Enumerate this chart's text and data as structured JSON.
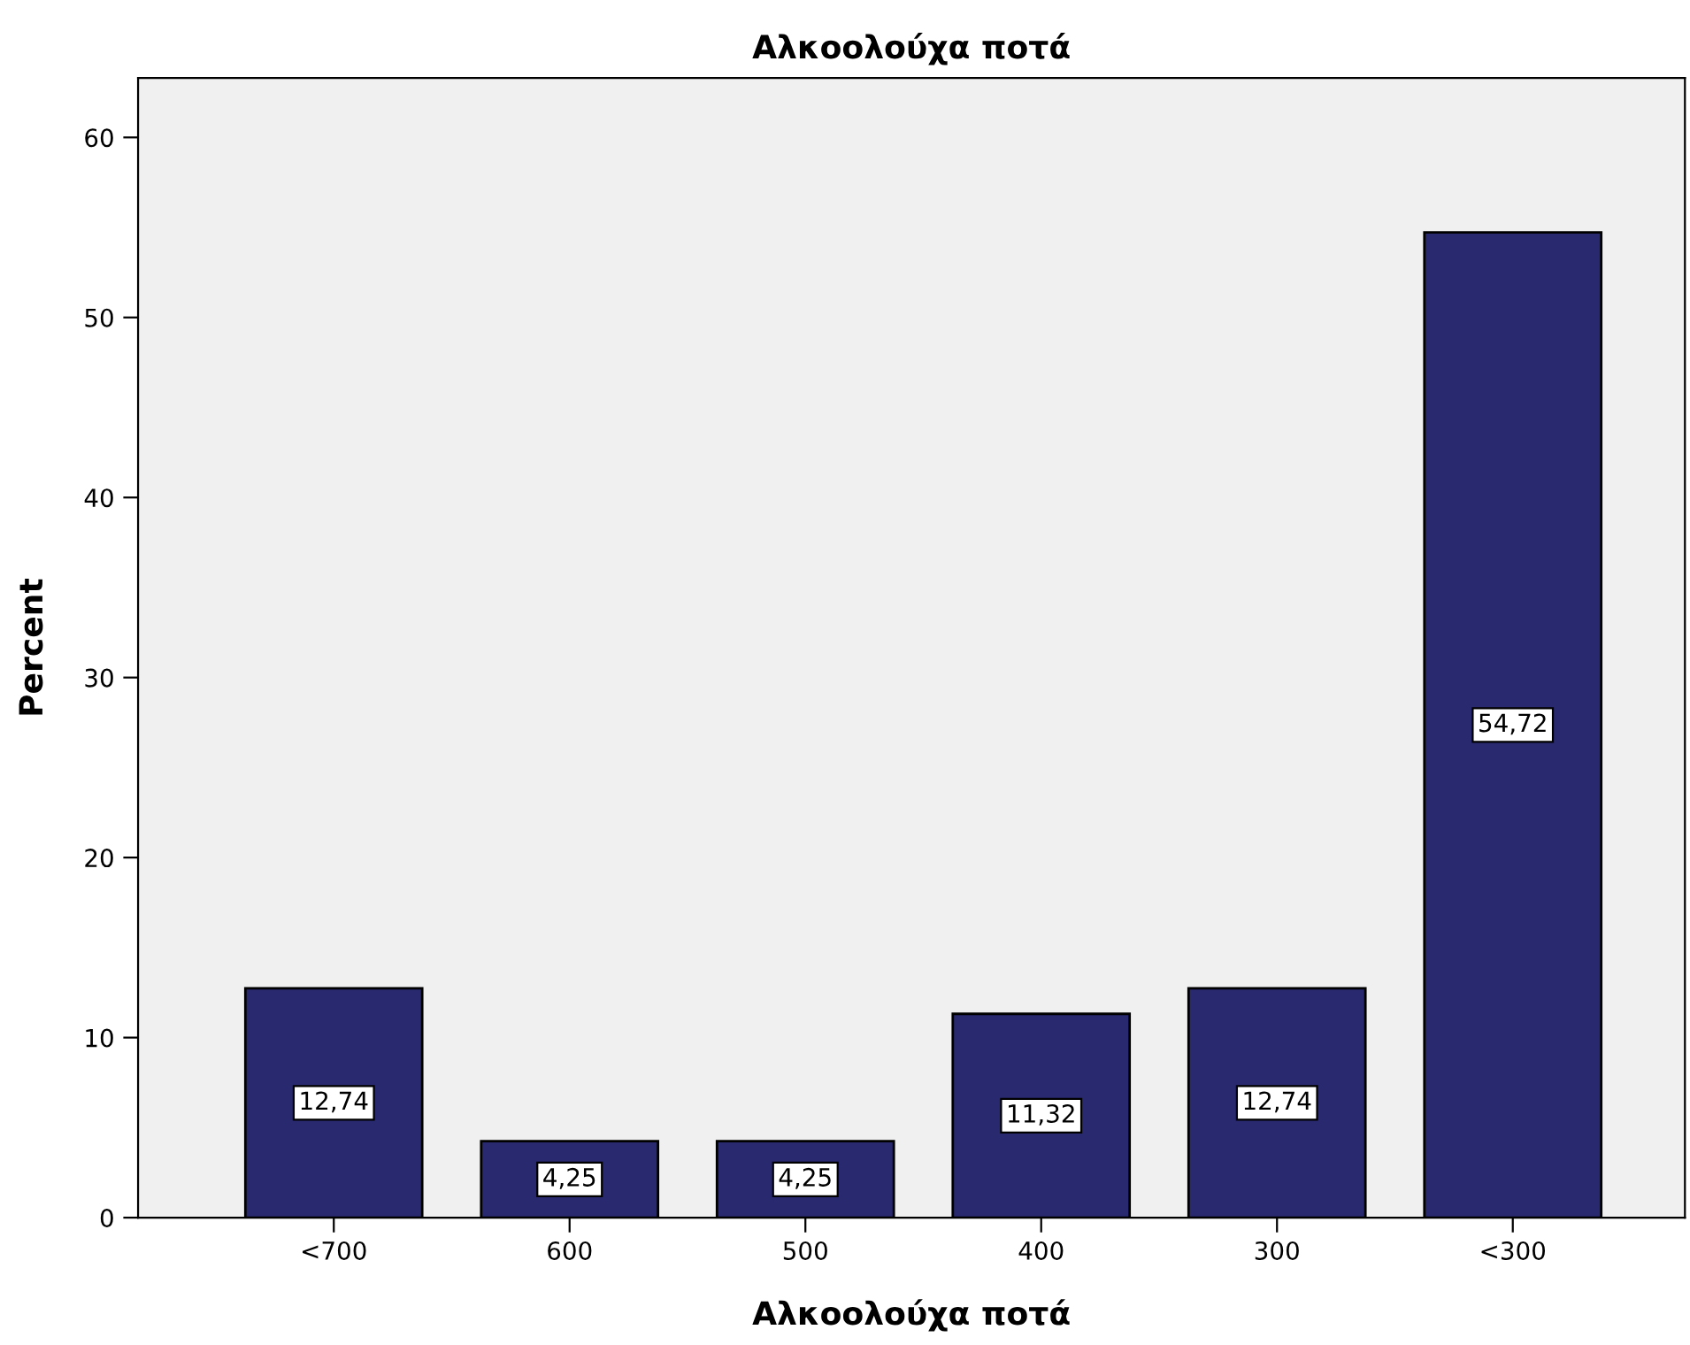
{
  "chart_data": {
    "type": "bar",
    "title": "Αλκοολούχα ποτά",
    "xlabel": "Αλκοολούχα ποτά",
    "ylabel": "Percent",
    "categories": [
      "<700",
      "600",
      "500",
      "400",
      "300",
      "<300"
    ],
    "values": [
      12.74,
      4.25,
      4.25,
      11.32,
      12.74,
      54.72
    ],
    "value_labels": [
      "12,74",
      "4,25",
      "4,25",
      "11,32",
      "12,74",
      "54,72"
    ],
    "color": "#29296f",
    "ylim": [
      0,
      63.3
    ],
    "yticks": [
      0,
      10,
      20,
      30,
      40,
      50,
      60
    ],
    "grid": false,
    "legend": false
  }
}
